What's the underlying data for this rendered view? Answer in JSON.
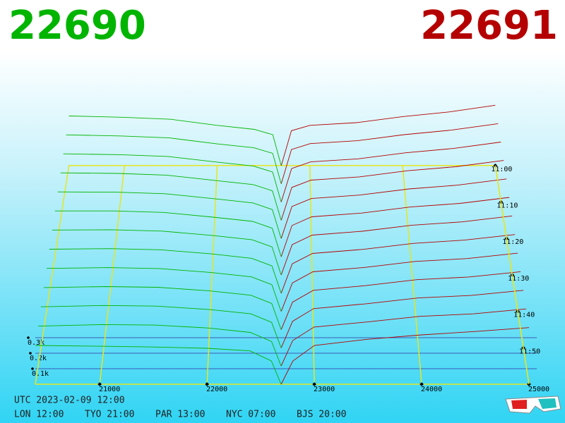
{
  "chart_data": {
    "type": "depth3d",
    "best_bid": 22690,
    "best_ask": 22691,
    "bid_color": "#00b400",
    "ask_color": "#b40000",
    "xlim": [
      20400,
      25000
    ],
    "xticks": [
      21000,
      22000,
      23000,
      24000,
      25000
    ],
    "depth_ticks": [
      {
        "value": 100,
        "label": "0.1k"
      },
      {
        "value": 200,
        "label": "0.2k"
      },
      {
        "value": 300,
        "label": "0.3k"
      }
    ],
    "time_ticks": [
      "11:00",
      "11:10",
      "11:20",
      "11:30",
      "11:40",
      "11:50"
    ],
    "bid_prices": [
      20400,
      21000,
      21500,
      22000,
      22400,
      22600,
      22690
    ],
    "ask_prices": [
      22691,
      22800,
      23000,
      23500,
      24000,
      24500,
      25000
    ],
    "snapshots": [
      {
        "time": "11:00",
        "bids": [
          370,
          360,
          345,
          300,
          270,
          230,
          0
        ],
        "asks": [
          0,
          260,
          300,
          320,
          365,
          400,
          450
        ]
      },
      {
        "time": "11:05",
        "bids": [
          360,
          352,
          338,
          295,
          265,
          224,
          0
        ],
        "asks": [
          0,
          252,
          296,
          317,
          362,
          395,
          443
        ]
      },
      {
        "time": "11:10",
        "bids": [
          350,
          344,
          331,
          291,
          261,
          218,
          0
        ],
        "asks": [
          0,
          243,
          292,
          314,
          358,
          389,
          436
        ]
      },
      {
        "time": "11:15",
        "bids": [
          340,
          336,
          324,
          286,
          256,
          211,
          0
        ],
        "asks": [
          0,
          235,
          288,
          311,
          355,
          384,
          429
        ]
      },
      {
        "time": "11:20",
        "bids": [
          330,
          328,
          317,
          282,
          252,
          205,
          0
        ],
        "asks": [
          0,
          226,
          283,
          308,
          351,
          378,
          422
        ]
      },
      {
        "time": "11:25",
        "bids": [
          320,
          320,
          310,
          277,
          247,
          199,
          0
        ],
        "asks": [
          0,
          218,
          279,
          305,
          348,
          373,
          415
        ]
      },
      {
        "time": "11:30",
        "bids": [
          310,
          312,
          303,
          273,
          243,
          193,
          0
        ],
        "asks": [
          0,
          209,
          275,
          302,
          344,
          367,
          408
        ]
      },
      {
        "time": "11:35",
        "bids": [
          300,
          304,
          296,
          268,
          238,
          186,
          0
        ],
        "asks": [
          0,
          200,
          271,
          299,
          340,
          362,
          400
        ]
      },
      {
        "time": "11:40",
        "bids": [
          290,
          295,
          289,
          263,
          233,
          180,
          0
        ],
        "asks": [
          0,
          192,
          267,
          296,
          337,
          356,
          393
        ]
      },
      {
        "time": "11:45",
        "bids": [
          280,
          287,
          282,
          258,
          229,
          174,
          0
        ],
        "asks": [
          0,
          183,
          262,
          293,
          333,
          351,
          386
        ]
      },
      {
        "time": "11:50",
        "bids": [
          270,
          279,
          275,
          253,
          224,
          168,
          0
        ],
        "asks": [
          0,
          175,
          258,
          290,
          329,
          345,
          379
        ]
      },
      {
        "time": "11:55",
        "bids": [
          260,
          270,
          267,
          248,
          219,
          160,
          0
        ],
        "asks": [
          0,
          166,
          254,
          287,
          324,
          340,
          372
        ]
      },
      {
        "time": "12:00",
        "bids": [
          250,
          245,
          240,
          232,
          215,
          150,
          0
        ],
        "asks": [
          0,
          150,
          250,
          290,
          318,
          340,
          365
        ]
      }
    ]
  },
  "footer": {
    "utc": "UTC 2023-02-09 12:00",
    "clocks": [
      "LON 12:00",
      "TYO 21:00",
      "PAR 13:00",
      "NYC 07:00",
      "BJS 20:00"
    ]
  }
}
